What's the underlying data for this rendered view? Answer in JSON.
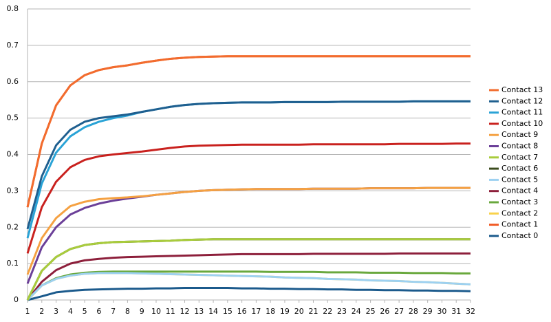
{
  "chart_data": {
    "type": "line",
    "categories": [
      1,
      2,
      3,
      4,
      5,
      6,
      7,
      8,
      9,
      10,
      11,
      12,
      13,
      14,
      15,
      16,
      17,
      18,
      19,
      20,
      21,
      22,
      23,
      24,
      25,
      26,
      27,
      28,
      29,
      30,
      31,
      32
    ],
    "ylim": [
      0,
      0.8
    ],
    "yticks": [
      0,
      0.1,
      0.2,
      0.3,
      0.4,
      0.5,
      0.6,
      0.7,
      0.8
    ],
    "grid": true,
    "legend": "right",
    "series": [
      {
        "name": "Contact 13",
        "color": "#f26c2e",
        "values": [
          0.255,
          0.43,
          0.535,
          0.59,
          0.618,
          0.632,
          0.64,
          0.645,
          0.652,
          0.658,
          0.663,
          0.666,
          0.668,
          0.669,
          0.67,
          0.67,
          0.67,
          0.67,
          0.67,
          0.67,
          0.67,
          0.67,
          0.67,
          0.67,
          0.67,
          0.67,
          0.67,
          0.67,
          0.67,
          0.67,
          0.67,
          0.67
        ]
      },
      {
        "name": "Contact 12",
        "color": "#1f5f8f",
        "values": [
          0.195,
          0.34,
          0.425,
          0.468,
          0.49,
          0.5,
          0.505,
          0.51,
          0.517,
          0.524,
          0.531,
          0.536,
          0.539,
          0.541,
          0.542,
          0.543,
          0.543,
          0.543,
          0.544,
          0.544,
          0.544,
          0.544,
          0.545,
          0.545,
          0.545,
          0.545,
          0.545,
          0.546,
          0.546,
          0.546,
          0.546,
          0.546
        ]
      },
      {
        "name": "Contact 11",
        "color": "#2aa3d6",
        "values": [
          0.17,
          0.32,
          0.405,
          0.45,
          0.475,
          0.49,
          0.5,
          0.507,
          0.517,
          0.524,
          0.531,
          0.536,
          0.539,
          0.541,
          0.542,
          0.543,
          0.543,
          0.543,
          0.544,
          0.544,
          0.544,
          0.544,
          0.545,
          0.545,
          0.545,
          0.545,
          0.545,
          0.546,
          0.546,
          0.546,
          0.546,
          0.546
        ]
      },
      {
        "name": "Contact 10",
        "color": "#c9211e",
        "values": [
          0.128,
          0.255,
          0.325,
          0.365,
          0.385,
          0.395,
          0.4,
          0.404,
          0.408,
          0.413,
          0.418,
          0.422,
          0.424,
          0.425,
          0.426,
          0.427,
          0.427,
          0.427,
          0.427,
          0.427,
          0.428,
          0.428,
          0.428,
          0.428,
          0.428,
          0.428,
          0.429,
          0.429,
          0.429,
          0.429,
          0.43,
          0.43
        ]
      },
      {
        "name": "Contact 9",
        "color": "#f5a142",
        "values": [
          0.07,
          0.17,
          0.225,
          0.258,
          0.27,
          0.277,
          0.28,
          0.282,
          0.285,
          0.289,
          0.293,
          0.297,
          0.3,
          0.302,
          0.303,
          0.304,
          0.305,
          0.305,
          0.305,
          0.305,
          0.306,
          0.306,
          0.306,
          0.306,
          0.307,
          0.307,
          0.307,
          0.307,
          0.308,
          0.308,
          0.308,
          0.308
        ]
      },
      {
        "name": "Contact 8",
        "color": "#6b3f98",
        "values": [
          0.045,
          0.145,
          0.2,
          0.235,
          0.253,
          0.265,
          0.273,
          0.279,
          0.284,
          0.289,
          0.293,
          0.297,
          0.3,
          0.302,
          0.303,
          0.304,
          0.305,
          0.305,
          0.305,
          0.305,
          0.306,
          0.306,
          0.306,
          0.306,
          0.307,
          0.307,
          0.307,
          0.307,
          0.308,
          0.308,
          0.308,
          0.308
        ]
      },
      {
        "name": "Contact 7",
        "color": "#a9cc3c",
        "values": [
          0,
          0.08,
          0.118,
          0.14,
          0.151,
          0.156,
          0.159,
          0.16,
          0.161,
          0.162,
          0.163,
          0.165,
          0.166,
          0.167,
          0.167,
          0.167,
          0.167,
          0.167,
          0.167,
          0.167,
          0.167,
          0.167,
          0.167,
          0.167,
          0.167,
          0.167,
          0.167,
          0.167,
          0.167,
          0.167,
          0.167,
          0.167
        ]
      },
      {
        "name": "Contact 6",
        "color": "#3b4b1d",
        "values": [
          0,
          0.08,
          0.118,
          0.14,
          0.151,
          0.156,
          0.159,
          0.16,
          0.161,
          0.162,
          0.163,
          0.165,
          0.166,
          0.167,
          0.167,
          0.167,
          0.167,
          0.167,
          0.167,
          0.167,
          0.167,
          0.167,
          0.167,
          0.167,
          0.167,
          0.167,
          0.167,
          0.167,
          0.167,
          0.167,
          0.167,
          0.167
        ]
      },
      {
        "name": "Contact 5",
        "color": "#9dd1f1",
        "values": [
          0,
          0.04,
          0.058,
          0.067,
          0.072,
          0.074,
          0.074,
          0.074,
          0.073,
          0.072,
          0.071,
          0.07,
          0.069,
          0.068,
          0.067,
          0.066,
          0.065,
          0.064,
          0.062,
          0.061,
          0.06,
          0.058,
          0.057,
          0.056,
          0.054,
          0.053,
          0.052,
          0.05,
          0.049,
          0.047,
          0.045,
          0.043
        ]
      },
      {
        "name": "Contact 4",
        "color": "#8d1f3b",
        "values": [
          0,
          0.05,
          0.082,
          0.1,
          0.109,
          0.113,
          0.116,
          0.118,
          0.119,
          0.12,
          0.121,
          0.122,
          0.123,
          0.124,
          0.125,
          0.126,
          0.126,
          0.126,
          0.126,
          0.126,
          0.127,
          0.127,
          0.127,
          0.127,
          0.127,
          0.127,
          0.128,
          0.128,
          0.128,
          0.128,
          0.128,
          0.128
        ]
      },
      {
        "name": "Contact 3",
        "color": "#69a83d",
        "values": [
          0,
          0.04,
          0.06,
          0.07,
          0.075,
          0.077,
          0.078,
          0.078,
          0.078,
          0.078,
          0.078,
          0.078,
          0.078,
          0.078,
          0.078,
          0.078,
          0.078,
          0.077,
          0.077,
          0.077,
          0.077,
          0.076,
          0.076,
          0.076,
          0.075,
          0.075,
          0.075,
          0.074,
          0.074,
          0.074,
          0.073,
          0.073
        ]
      },
      {
        "name": "Contact 2",
        "color": "#f9d24b",
        "values": [
          0,
          0.04,
          0.058,
          0.067,
          0.072,
          0.074,
          0.074,
          0.074,
          0.073,
          0.072,
          0.071,
          0.07,
          0.069,
          0.068,
          0.067,
          0.066,
          0.065,
          0.064,
          0.062,
          0.061,
          0.06,
          0.058,
          0.057,
          0.056,
          0.054,
          0.053,
          0.052,
          0.05,
          0.049,
          0.047,
          0.045,
          0.043
        ]
      },
      {
        "name": "Contact 1",
        "color": "#f15a24",
        "values": [
          0.255,
          0.43,
          0.535,
          0.59,
          0.618,
          0.632,
          0.64,
          0.645,
          0.652,
          0.658,
          0.663,
          0.666,
          0.668,
          0.669,
          0.67,
          0.67,
          0.67,
          0.67,
          0.67,
          0.67,
          0.67,
          0.67,
          0.67,
          0.67,
          0.67,
          0.67,
          0.67,
          0.67,
          0.67,
          0.67,
          0.67,
          0.67
        ]
      },
      {
        "name": "Contact 0",
        "color": "#1b5a8c",
        "values": [
          0,
          0.01,
          0.021,
          0.025,
          0.028,
          0.029,
          0.03,
          0.031,
          0.031,
          0.032,
          0.032,
          0.033,
          0.033,
          0.033,
          0.033,
          0.032,
          0.032,
          0.031,
          0.031,
          0.03,
          0.03,
          0.029,
          0.029,
          0.028,
          0.028,
          0.027,
          0.027,
          0.026,
          0.026,
          0.025,
          0.025,
          0.024
        ]
      }
    ]
  }
}
